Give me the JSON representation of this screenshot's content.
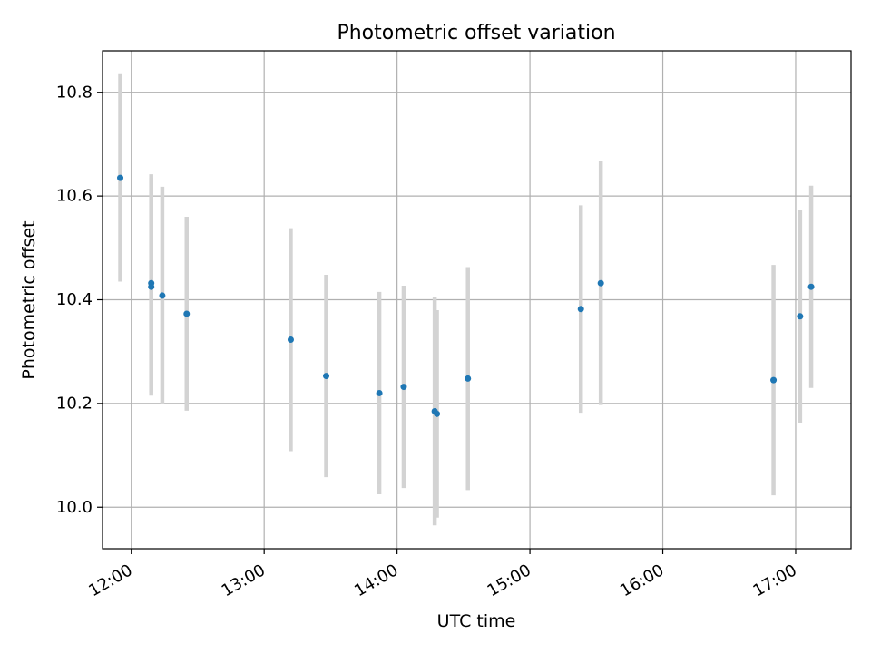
{
  "chart_data": {
    "type": "scatter",
    "title": "Photometric offset variation",
    "xlabel": "UTC time",
    "ylabel": "Photometric offset",
    "x_ticks": [
      "12:00",
      "13:00",
      "14:00",
      "15:00",
      "16:00",
      "17:00"
    ],
    "y_ticks": [
      "10.0",
      "10.2",
      "10.4",
      "10.6",
      "10.8"
    ],
    "xlim": [
      "11:47",
      "17:25"
    ],
    "ylim": [
      9.92,
      10.88
    ],
    "grid": true,
    "point_color": "#1f77b4",
    "errorbar_color": "#d3d3d3",
    "points": [
      {
        "x": "11:55",
        "y": 10.635,
        "err": 0.2
      },
      {
        "x": "12:09",
        "y": 10.425,
        "err": 0.21
      },
      {
        "x": "12:09",
        "y": 10.432,
        "err": 0.21
      },
      {
        "x": "12:14",
        "y": 10.408,
        "err": 0.21
      },
      {
        "x": "12:25",
        "y": 10.373,
        "err": 0.187
      },
      {
        "x": "13:12",
        "y": 10.323,
        "err": 0.215
      },
      {
        "x": "13:28",
        "y": 10.253,
        "err": 0.195
      },
      {
        "x": "13:52",
        "y": 10.22,
        "err": 0.195
      },
      {
        "x": "14:03",
        "y": 10.232,
        "err": 0.195
      },
      {
        "x": "14:17",
        "y": 10.185,
        "err": 0.22
      },
      {
        "x": "14:18",
        "y": 10.18,
        "err": 0.2
      },
      {
        "x": "14:32",
        "y": 10.248,
        "err": 0.215
      },
      {
        "x": "15:23",
        "y": 10.382,
        "err": 0.2
      },
      {
        "x": "15:32",
        "y": 10.432,
        "err": 0.235
      },
      {
        "x": "16:50",
        "y": 10.245,
        "err": 0.222
      },
      {
        "x": "17:02",
        "y": 10.368,
        "err": 0.205
      },
      {
        "x": "17:07",
        "y": 10.425,
        "err": 0.195
      }
    ]
  }
}
